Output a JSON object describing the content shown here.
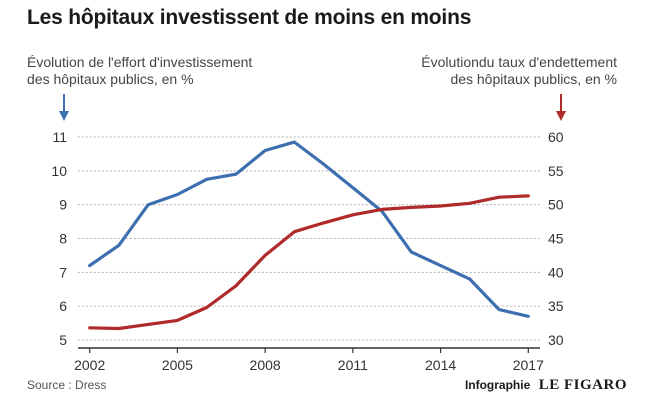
{
  "chart_data": {
    "type": "line",
    "title": "Les hôpitaux investissent de moins en moins",
    "ylabel_left": [
      "Évolution de l'effort d'investissement",
      "des hôpitaux publics, en %"
    ],
    "ylabel_right": [
      "Évolutiondu taux d'endettement",
      "des hôpitaux publics, en %"
    ],
    "x": [
      2002,
      2003,
      2004,
      2005,
      2006,
      2007,
      2008,
      2009,
      2010,
      2011,
      2012,
      2013,
      2014,
      2015,
      2016,
      2017
    ],
    "x_ticks": [
      "2002",
      "2005",
      "2008",
      "2011",
      "2014",
      "2017"
    ],
    "xlim": [
      2001.6,
      2017.4
    ],
    "series": [
      {
        "axis": "left",
        "color": "#3d6fb0",
        "values": [
          7.2,
          7.8,
          9.0,
          9.3,
          9.75,
          9.9,
          10.6,
          10.85,
          10.2,
          9.5,
          8.8,
          7.6,
          7.2,
          6.8,
          5.9,
          5.7
        ]
      },
      {
        "axis": "right",
        "color": "#b02a2a",
        "values": [
          31.8,
          31.7,
          32.3,
          32.9,
          34.8,
          38.0,
          42.5,
          46.0,
          47.3,
          48.5,
          49.3,
          49.6,
          49.8,
          50.2,
          51.1,
          51.3
        ]
      }
    ],
    "y_left_ticks": [
      "5",
      "6",
      "7",
      "8",
      "9",
      "10",
      "11"
    ],
    "ylim_left": [
      5,
      11
    ],
    "y_right_ticks": [
      "30",
      "35",
      "40",
      "45",
      "50",
      "55",
      "60"
    ],
    "ylim_right": [
      30,
      60
    ],
    "grid": "horizontal dotted",
    "axis_arrows": {
      "left_color": "#3d6fb0",
      "right_color": "#b02a2a"
    }
  },
  "footer": {
    "source": "Source : Dress",
    "credit": "Infographie",
    "brand": "LE FIGARO"
  }
}
